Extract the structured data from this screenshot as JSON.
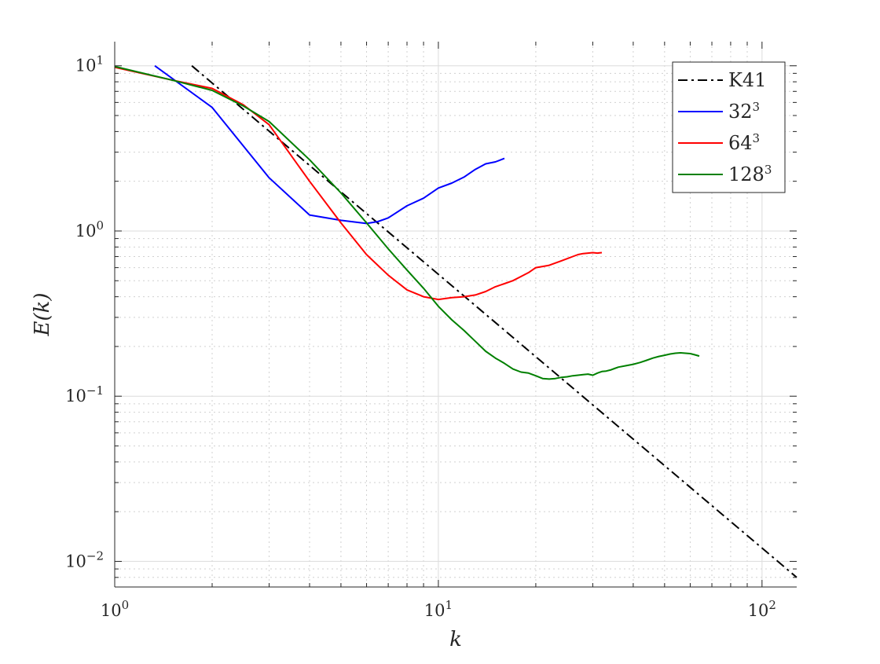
{
  "chart_data": {
    "type": "line",
    "title": "",
    "xlabel": "k",
    "ylabel": "E(k)",
    "xscale": "log",
    "yscale": "log",
    "xlim": [
      1,
      128
    ],
    "ylim": [
      0.007,
      14
    ],
    "grid": true,
    "minor_grid": true,
    "legend_position": "top-right",
    "x_ticks": [
      {
        "value": 1,
        "base": "10",
        "exp": "0"
      },
      {
        "value": 10,
        "base": "10",
        "exp": "1"
      },
      {
        "value": 100,
        "base": "10",
        "exp": "2"
      }
    ],
    "y_ticks": [
      {
        "value": 0.01,
        "base": "10",
        "exp": "−2"
      },
      {
        "value": 0.1,
        "base": "10",
        "exp": "−1"
      },
      {
        "value": 1,
        "base": "10",
        "exp": "0"
      },
      {
        "value": 10,
        "base": "10",
        "exp": "1"
      }
    ],
    "series": [
      {
        "name": "K41",
        "label_base": "K41",
        "label_sup": "",
        "color": "#000000",
        "dash": "dashdot",
        "x": [
          1.73,
          128
        ],
        "y": [
          10,
          0.008
        ]
      },
      {
        "name": "32³",
        "label_base": "32",
        "label_sup": "3",
        "color": "#0000ff",
        "dash": "solid",
        "x": [
          1.33,
          2,
          3,
          4,
          5,
          6,
          6.5,
          7,
          8,
          9,
          10,
          11,
          12,
          13,
          14,
          15,
          16
        ],
        "y": [
          10,
          5.6,
          2.1,
          1.25,
          1.16,
          1.11,
          1.14,
          1.2,
          1.42,
          1.58,
          1.82,
          1.95,
          2.12,
          2.36,
          2.55,
          2.62,
          2.75
        ]
      },
      {
        "name": "64³",
        "label_base": "64",
        "label_sup": "3",
        "color": "#ff0000",
        "dash": "solid",
        "x": [
          1,
          1.5,
          2,
          2.5,
          3,
          4,
          5,
          6,
          7,
          8,
          9,
          10,
          11,
          12,
          13,
          14,
          15,
          16,
          17,
          18,
          19,
          20,
          21,
          22,
          23,
          24,
          25,
          26,
          27,
          28,
          29,
          30,
          31,
          32
        ],
        "y": [
          9.8,
          8.2,
          7.3,
          5.8,
          4.4,
          2.0,
          1.12,
          0.72,
          0.54,
          0.44,
          0.4,
          0.385,
          0.395,
          0.4,
          0.41,
          0.43,
          0.46,
          0.48,
          0.5,
          0.53,
          0.56,
          0.6,
          0.61,
          0.62,
          0.64,
          0.66,
          0.68,
          0.7,
          0.72,
          0.73,
          0.735,
          0.74,
          0.735,
          0.74
        ]
      },
      {
        "name": "128³",
        "label_base": "128",
        "label_sup": "3",
        "color": "#008000",
        "dash": "solid",
        "x": [
          1,
          1.5,
          2,
          2.5,
          3,
          4,
          5,
          6,
          7,
          8,
          9,
          10,
          11,
          12,
          13,
          14,
          15,
          16,
          17,
          18,
          19,
          20,
          21,
          22,
          23,
          24,
          25,
          26,
          27,
          28,
          29,
          30,
          31,
          32,
          33,
          34,
          35,
          36,
          38,
          40,
          42,
          44,
          46,
          48,
          50,
          52,
          54,
          56,
          58,
          60,
          62,
          64
        ],
        "y": [
          9.9,
          8.2,
          7.1,
          5.7,
          4.6,
          2.7,
          1.7,
          1.12,
          0.78,
          0.58,
          0.45,
          0.35,
          0.29,
          0.25,
          0.215,
          0.187,
          0.17,
          0.158,
          0.146,
          0.14,
          0.138,
          0.133,
          0.128,
          0.127,
          0.128,
          0.13,
          0.131,
          0.133,
          0.134,
          0.135,
          0.136,
          0.134,
          0.138,
          0.141,
          0.142,
          0.144,
          0.147,
          0.15,
          0.153,
          0.156,
          0.16,
          0.165,
          0.17,
          0.174,
          0.177,
          0.18,
          0.182,
          0.183,
          0.182,
          0.181,
          0.178,
          0.175
        ]
      }
    ]
  }
}
